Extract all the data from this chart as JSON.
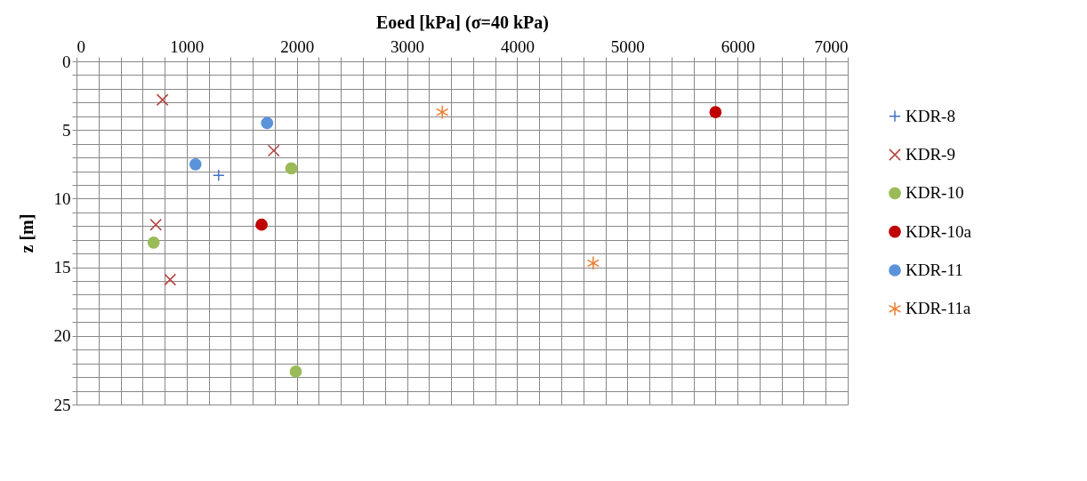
{
  "chart_data": {
    "type": "scatter",
    "xlabel": "Eoed [kPa] (σ=40 kPa)",
    "ylabel": "z [m]",
    "xlim": [
      0,
      7000
    ],
    "ylim": [
      25,
      0
    ],
    "xticks": [
      0,
      {
        "value": 200,
        "label": null
      },
      {
        "value": 400,
        "label": null
      },
      {
        "value": 600,
        "label": null
      },
      {
        "value": 800,
        "label": null
      },
      1000,
      {
        "value": 1200,
        "label": null
      },
      {
        "value": 1400,
        "label": null
      },
      {
        "value": 1600,
        "label": null
      },
      {
        "value": 1800,
        "label": null
      },
      2000,
      {
        "value": 2200,
        "label": null
      },
      {
        "value": 2400,
        "label": null
      },
      {
        "value": 2600,
        "label": null
      },
      {
        "value": 2800,
        "label": null
      },
      3000,
      {
        "value": 3200,
        "label": null
      },
      {
        "value": 3400,
        "label": null
      },
      {
        "value": 3600,
        "label": null
      },
      {
        "value": 3800,
        "label": null
      },
      4000,
      {
        "value": 4200,
        "label": null
      },
      {
        "value": 4400,
        "label": null
      },
      {
        "value": 4600,
        "label": null
      },
      {
        "value": 4800,
        "label": null
      },
      5000,
      {
        "value": 5200,
        "label": null
      },
      {
        "value": 5400,
        "label": null
      },
      {
        "value": 5600,
        "label": null
      },
      {
        "value": 5800,
        "label": null
      },
      6000,
      {
        "value": 6200,
        "label": null
      },
      {
        "value": 6400,
        "label": null
      },
      {
        "value": 6600,
        "label": null
      },
      {
        "value": 6800,
        "label": null
      },
      7000
    ],
    "yticks": [
      0,
      {
        "value": 1,
        "label": null
      },
      {
        "value": 2,
        "label": null
      },
      {
        "value": 3,
        "label": null
      },
      {
        "value": 4,
        "label": null
      },
      5,
      {
        "value": 6,
        "label": null
      },
      {
        "value": 7,
        "label": null
      },
      {
        "value": 8,
        "label": null
      },
      {
        "value": 9,
        "label": null
      },
      10,
      {
        "value": 11,
        "label": null
      },
      {
        "value": 12,
        "label": null
      },
      {
        "value": 13,
        "label": null
      },
      {
        "value": 14,
        "label": null
      },
      15,
      {
        "value": 16,
        "label": null
      },
      {
        "value": 17,
        "label": null
      },
      {
        "value": 18,
        "label": null
      },
      {
        "value": 19,
        "label": null
      },
      20,
      {
        "value": 21,
        "label": null
      },
      {
        "value": 22,
        "label": null
      },
      {
        "value": 23,
        "label": null
      },
      {
        "value": 24,
        "label": null
      },
      25
    ],
    "grid": true,
    "legend": "right",
    "series": [
      {
        "name": "KDR-8",
        "color": "#4472c4",
        "marker": "cross",
        "x": [
          1290
        ],
        "values": [
          8.3
        ]
      },
      {
        "name": "KDR-9",
        "color": "#b5443f",
        "marker": "cross",
        "x": [
          780,
          1790,
          720,
          850
        ],
        "values": [
          2.8,
          6.5,
          11.9,
          15.9
        ]
      },
      {
        "name": "KDR-10",
        "color": "#9bbb59",
        "marker": "circle",
        "x": [
          1950,
          700,
          1990
        ],
        "values": [
          7.8,
          13.2,
          22.6
        ]
      },
      {
        "name": "KDR-10a",
        "color": "#c00000",
        "marker": "circle",
        "x": [
          1680,
          5800
        ],
        "values": [
          11.9,
          3.7
        ]
      },
      {
        "name": "KDR-11",
        "color": "#5b93db",
        "marker": "circle",
        "x": [
          1730,
          1080
        ],
        "values": [
          4.5,
          7.5
        ]
      },
      {
        "name": "KDR-11a",
        "color": "#ed7d31",
        "marker": "cross",
        "x": [
          3320,
          4690
        ],
        "values": [
          3.7,
          14.7
        ]
      }
    ]
  }
}
